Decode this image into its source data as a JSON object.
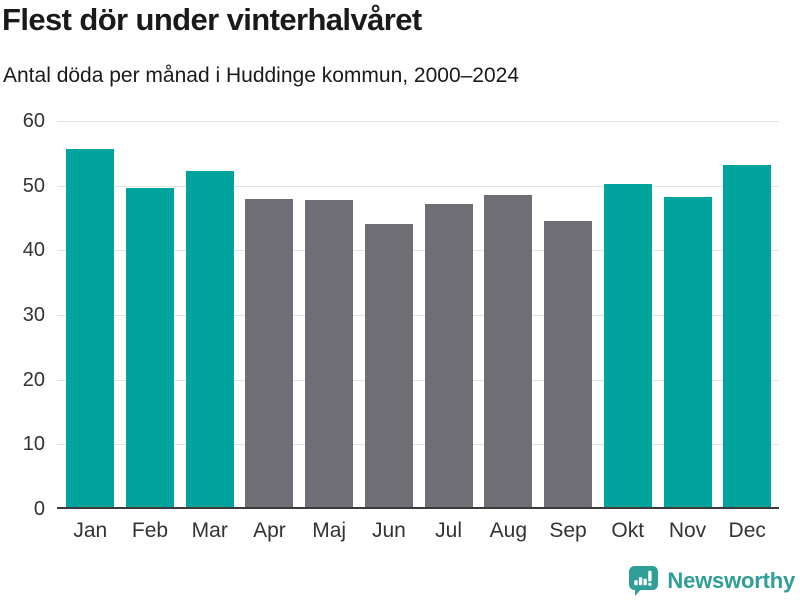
{
  "page": {
    "title": "Flest dör under vinterhalvåret",
    "subtitle": "Antal döda per månad i Huddinge kommun, 2000–2024"
  },
  "footer": {
    "brand_name": "Newsworthy",
    "brand_icon": "newsworthy-speech-bubble-barchart-icon"
  },
  "colors": {
    "highlight_teal": "#00a49c",
    "neutral_gray": "#6f6e74",
    "gridline": "#e2e2e2",
    "axis": "#3b3b3b",
    "tick_label": "#333333",
    "brand_teal": "#2f9e96",
    "title_text": "#1a1a1a"
  },
  "chart_data": {
    "type": "bar",
    "title": "Flest dör under vinterhalvåret",
    "subtitle": "Antal döda per månad i Huddinge kommun, 2000–2024",
    "categories": [
      "Jan",
      "Feb",
      "Mar",
      "Apr",
      "Maj",
      "Jun",
      "Jul",
      "Aug",
      "Sep",
      "Okt",
      "Nov",
      "Dec"
    ],
    "values": [
      55.7,
      49.7,
      52.2,
      47.9,
      47.8,
      44.1,
      47.1,
      48.5,
      44.5,
      50.3,
      48.3,
      53.2
    ],
    "highlighted_categories": [
      "Jan",
      "Feb",
      "Mar",
      "Okt",
      "Nov",
      "Dec"
    ],
    "series_note": "winter months highlighted in teal, summer months gray",
    "xlabel": "",
    "ylabel": "",
    "ylim": [
      0,
      60
    ],
    "yticks": [
      0,
      10,
      20,
      30,
      40,
      50,
      60
    ],
    "grid": "horizontal",
    "legend": "none"
  }
}
